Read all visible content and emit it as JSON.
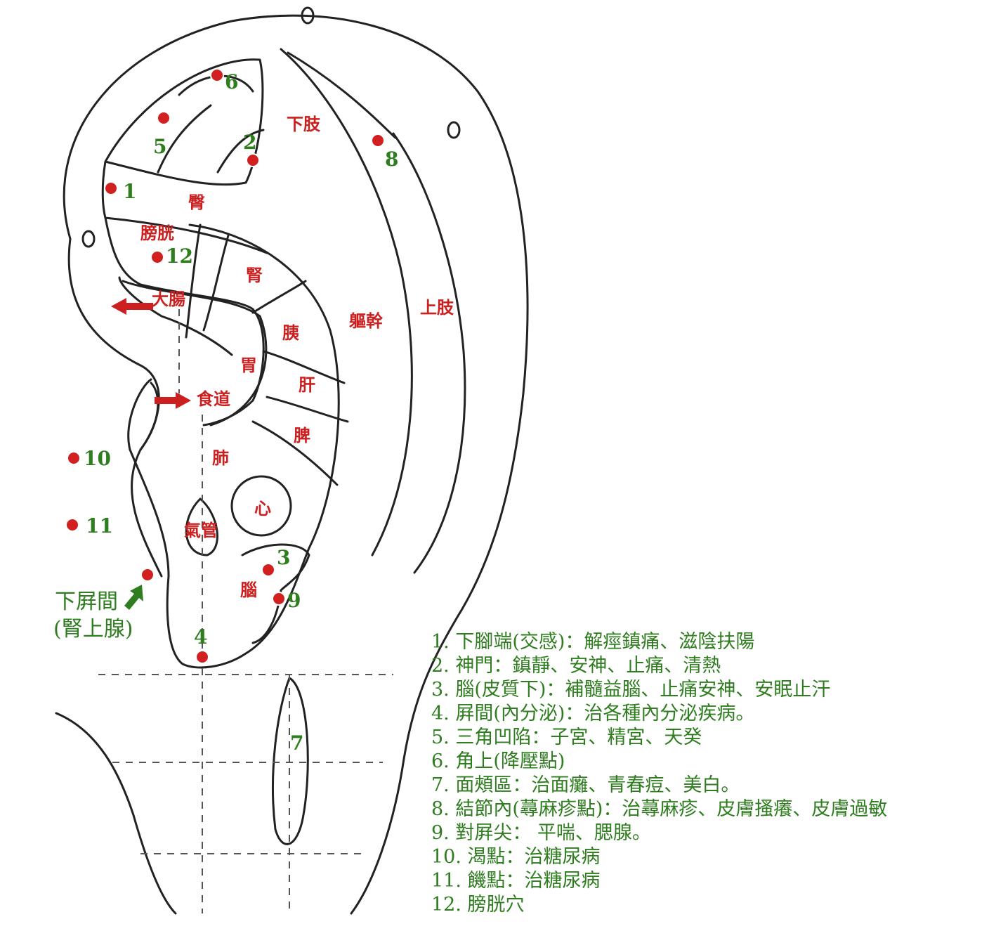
{
  "colors": {
    "point": "#d21f1f",
    "label_green": "#2e7d1e",
    "organ_red": "#cc1f1f",
    "line": "#222222"
  },
  "organs": {
    "xiazhi": "下肢",
    "tun": "臀",
    "pangguang": "膀胱",
    "shen": "腎",
    "dachang": "大腸",
    "qugan": "軀幹",
    "shangzhi": "上肢",
    "yi": "胰",
    "wei": "胃",
    "gan": "肝",
    "shidao": "食道",
    "pi": "脾",
    "fei": "肺",
    "xin": "心",
    "qiguan": "氣管",
    "nao": "腦"
  },
  "points": [
    {
      "label": "1"
    },
    {
      "label": "2"
    },
    {
      "label": "3"
    },
    {
      "label": "4"
    },
    {
      "label": "5"
    },
    {
      "label": "6"
    },
    {
      "label": "7"
    },
    {
      "label": "8"
    },
    {
      "label": "9"
    },
    {
      "label": "10"
    },
    {
      "label": "11"
    },
    {
      "label": "12"
    }
  ],
  "adrenal": {
    "line1": "下屛間",
    "line2": "(腎上腺)"
  },
  "legend": [
    "1. 下腳端(交感)：解痙鎮痛、滋陰扶陽",
    "2. 神門：鎮靜、安神、止痛、清熱",
    "3. 腦(皮質下)：補髓益腦、止痛安神、安眠止汗",
    "4. 屛間(內分泌)：治各種內分泌疾病。",
    "5. 三角凹陷：子宮、精宮、天癸",
    "6. 角上(降壓點)",
    "7. 面頰區：治面癱、青春痘、美白。",
    "8. 結節內(蕁麻疹點)：治蕁麻疹、皮膚搔癢、皮膚過敏",
    "9. 對屛尖： 平喘、腮腺。",
    "10. 渴點：治糖尿病",
    "11. 饑點：治糖尿病",
    "12. 膀胱穴"
  ]
}
